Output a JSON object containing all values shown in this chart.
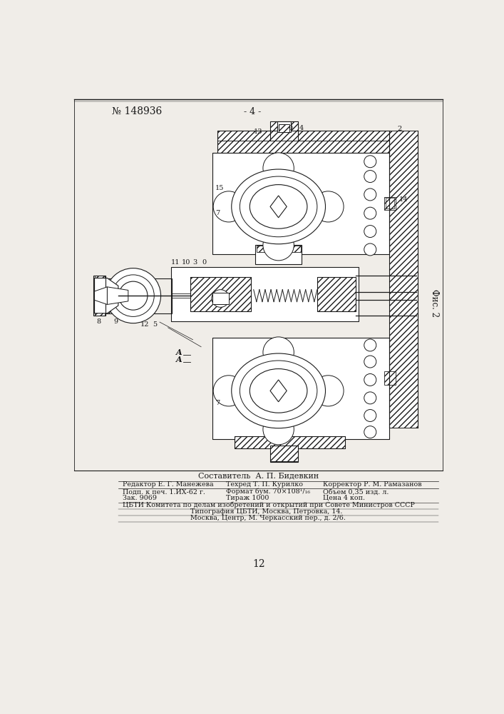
{
  "patent_number": "№ 148936",
  "page_number": "- 4 -",
  "fig_label": "Фис. 2",
  "composer": "Составитель  А. П. Бидевкин",
  "footer_line1_l": "Редактор Е. Г. Манежева",
  "footer_line1_m": "Техред Т. П. Курилко",
  "footer_line1_r": "Корректор Р. М. Рамазанов",
  "footer_line2_l": "Подп. к печ. 1.ИХ-62 г.",
  "footer_line2_m": "Формат бум. 70×108¹/₁₆",
  "footer_line2_r": "Объем 0,35 изд. л.",
  "footer_line3_l": "Зак. 9069",
  "footer_line3_m": "Тираж 1000",
  "footer_line3_r": "Цена 4 коп.",
  "footer_line4": "ЦБТИ Комитета по делам изобретений и открытий при Совете Министров СССР",
  "footer_line5": "Типография ЦБТИ, Москва, Петровка, 14.",
  "footer_line6": "Москва, Центр, М. Черкасский пер., д. 2/6.",
  "page_num": "12",
  "bg_color": "#f0ede8",
  "line_color": "#1a1a1a",
  "white": "#ffffff"
}
